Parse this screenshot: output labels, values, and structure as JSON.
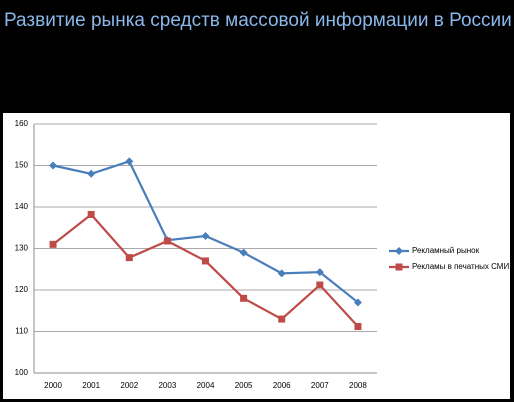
{
  "title": "Развитие рынка средств массовой информации в России",
  "chart_data": {
    "type": "line",
    "categories": [
      "2000",
      "2001",
      "2002",
      "2003",
      "2004",
      "2005",
      "2006",
      "2007",
      "2008"
    ],
    "series": [
      {
        "name": "Рекламный рынок",
        "color": "#4a7ebb",
        "marker": "diamond",
        "values": [
          150,
          148,
          151,
          132,
          133,
          129,
          124,
          124.3,
          117
        ]
      },
      {
        "name": "Рекламы в печатных СМИ",
        "color": "#be4b48",
        "marker": "square",
        "values": [
          131,
          138.2,
          127.8,
          131.8,
          127,
          118,
          113,
          121.2,
          111.2
        ]
      }
    ],
    "ylim": [
      100,
      160
    ],
    "yticks": [
      100,
      110,
      120,
      130,
      140,
      150,
      160
    ],
    "grid": true,
    "legend": "right"
  }
}
